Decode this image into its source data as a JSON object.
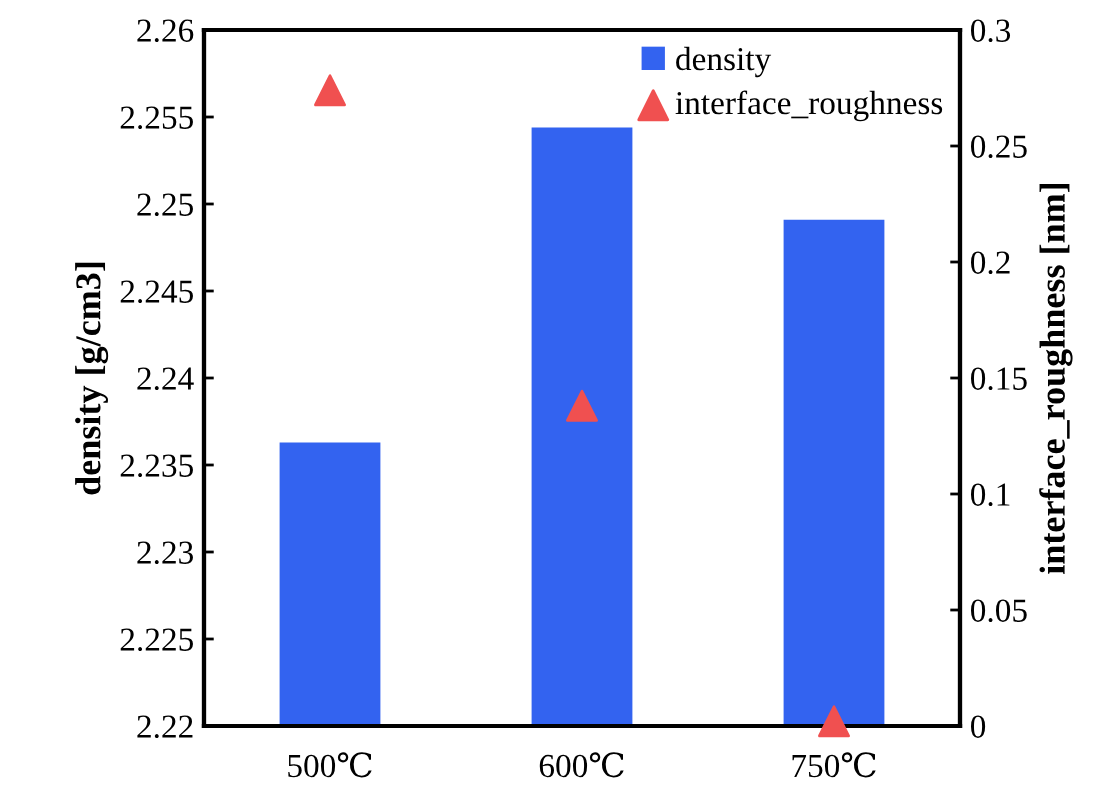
{
  "chart_data": {
    "type": "bar",
    "categories": [
      "500℃",
      "600℃",
      "750℃"
    ],
    "ylabel": "density [g/cm3]",
    "y2label": "interface_roughness [nm]",
    "series": [
      {
        "name": "density",
        "color": "#3363f0",
        "values": [
          2.2363,
          2.2544,
          2.2491
        ]
      },
      {
        "name": "interface_roughness",
        "type": "scatter",
        "axis": "y2",
        "color": "#f05050",
        "marker": "triangle",
        "values": [
          0.274,
          0.138,
          0.002
        ]
      }
    ],
    "ylim": [
      2.22,
      2.26
    ],
    "yticks": [
      2.22,
      2.225,
      2.23,
      2.235,
      2.24,
      2.245,
      2.25,
      2.255,
      2.26
    ],
    "y2lim": [
      0,
      0.3
    ],
    "y2ticks": [
      0,
      0.05,
      0.1,
      0.15,
      0.2,
      0.25,
      0.3
    ],
    "legend": "top right",
    "grid": false
  }
}
